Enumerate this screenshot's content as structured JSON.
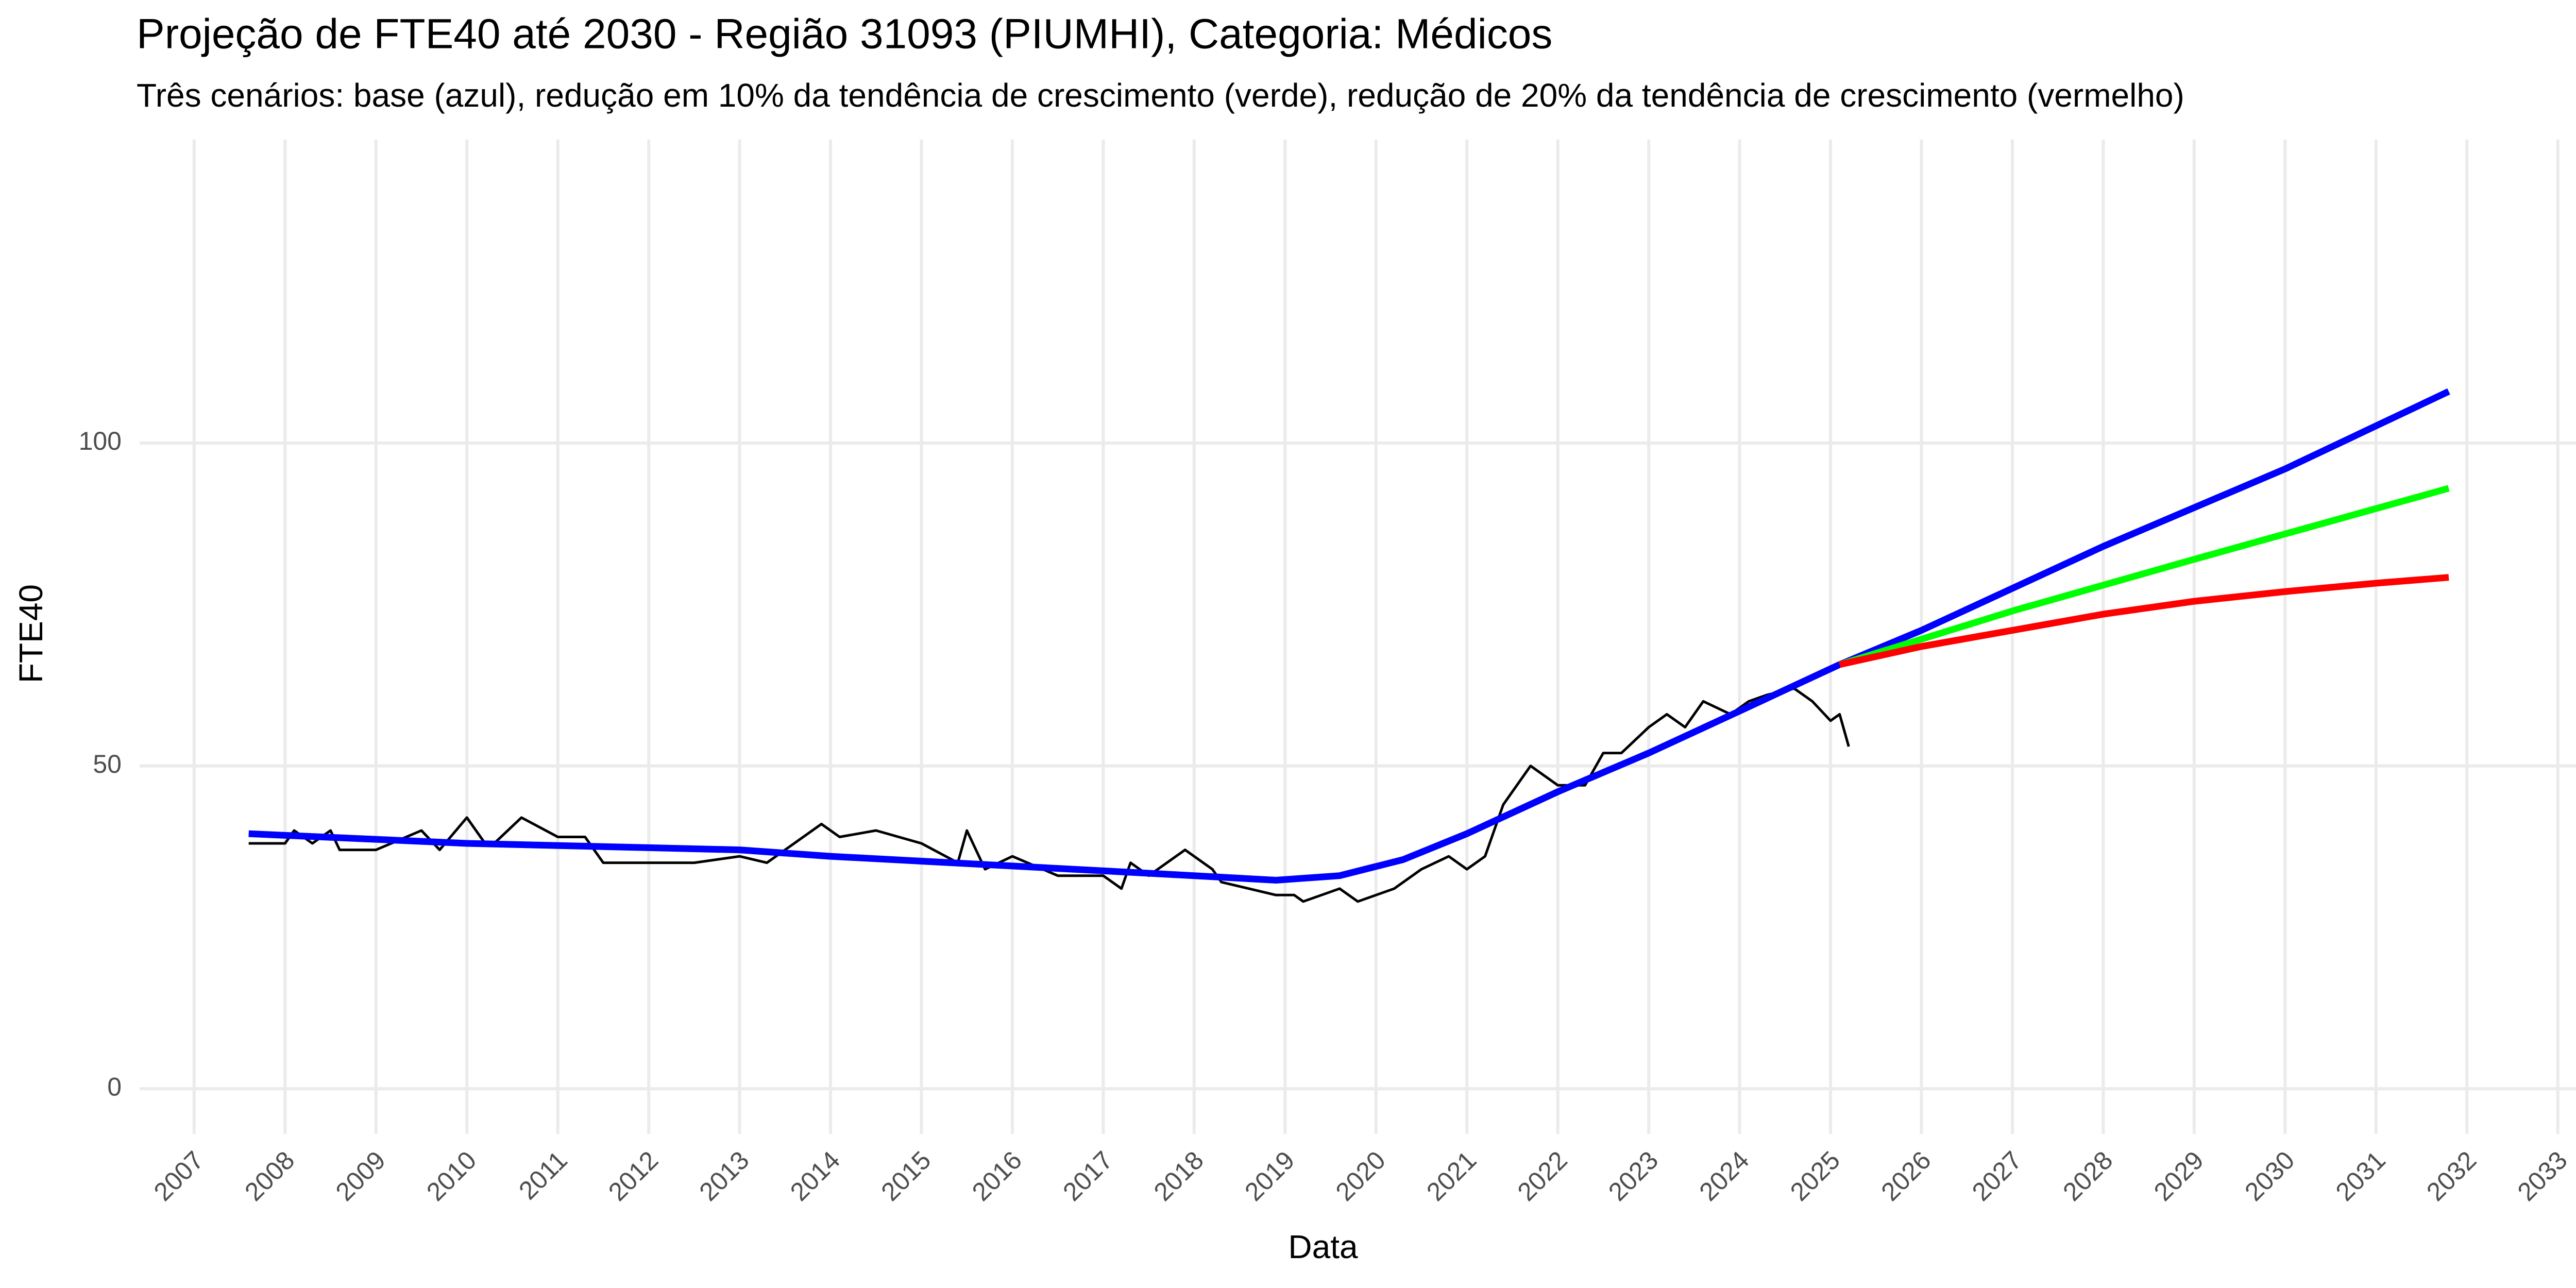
{
  "chart_data": {
    "type": "line",
    "title": "Projeção de FTE40 até 2030 - Região 31093 (PIUMHI), Categoria: Médicos",
    "subtitle": "Três cenários: base (azul), redução em 10% da tendência de crescimento (verde), redução de 20% da tendência de crescimento (vermelho)",
    "x_label": "Data",
    "y_label": "FTE40",
    "xlim": [
      2006.4,
      2033.2
    ],
    "ylim": [
      -7,
      147
    ],
    "xticks": [
      2007,
      2008,
      2009,
      2010,
      2011,
      2012,
      2013,
      2014,
      2015,
      2016,
      2017,
      2018,
      2019,
      2020,
      2021,
      2022,
      2023,
      2024,
      2025,
      2026,
      2027,
      2028,
      2029,
      2030,
      2031,
      2032,
      2033
    ],
    "yticks": [
      0,
      50,
      100
    ],
    "grid": true,
    "series": [
      {
        "color": "#000000",
        "x": [
          2007.6,
          2008.0,
          2008.1,
          2008.3,
          2008.5,
          2008.6,
          2009.0,
          2009.5,
          2009.7,
          2010.0,
          2010.2,
          2010.3,
          2010.6,
          2011.0,
          2011.3,
          2011.5,
          2012.0,
          2012.5,
          2013.0,
          2013.3,
          2013.5,
          2013.9,
          2014.1,
          2014.5,
          2015.0,
          2015.4,
          2015.5,
          2015.7,
          2016.0,
          2016.5,
          2017.0,
          2017.2,
          2017.3,
          2017.5,
          2017.9,
          2018.2,
          2018.3,
          2018.9,
          2019.1,
          2019.2,
          2019.6,
          2019.8,
          2020.2,
          2020.5,
          2020.8,
          2021.0,
          2021.2,
          2021.4,
          2021.7,
          2022.0,
          2022.3,
          2022.5,
          2022.7,
          2023.0,
          2023.2,
          2023.4,
          2023.6,
          2023.9,
          2024.1,
          2024.3,
          2024.6,
          2024.8,
          2025.0,
          2025.1,
          2025.2
        ],
        "values": [
          38,
          38,
          40,
          38,
          40,
          37,
          37,
          40,
          37,
          42,
          38,
          38,
          42,
          39,
          39,
          35,
          35,
          35,
          36,
          35,
          37,
          41,
          39,
          40,
          38,
          35,
          40,
          34,
          36,
          33,
          33,
          31,
          35,
          33,
          37,
          34,
          32,
          30,
          30,
          29,
          31,
          29,
          31,
          34,
          36,
          34,
          36,
          44,
          50,
          47,
          47,
          52,
          52,
          56,
          58,
          56,
          60,
          58,
          60,
          61,
          62,
          60,
          57,
          58,
          53
        ]
      },
      {
        "color": "#0000ff",
        "x": [
          2007.6,
          2010.0,
          2013.0,
          2014.0,
          2016.0,
          2018.0,
          2018.9,
          2019.6,
          2020.3,
          2021.0,
          2022.0,
          2023.0,
          2024.0,
          2025.1,
          2026.0,
          2028.0,
          2030.0,
          2031.8
        ],
        "values": [
          39.5,
          38,
          37,
          36,
          34.5,
          33,
          32.3,
          33,
          35.5,
          39.5,
          46,
          52,
          58.5,
          65.7,
          71,
          84,
          96,
          108
        ]
      },
      {
        "color": "#00ff00",
        "x": [
          2025.1,
          2027.0,
          2029.0,
          2031.8
        ],
        "values": [
          65.7,
          74,
          82,
          93
        ]
      },
      {
        "color": "#ff0000",
        "x": [
          2025.1,
          2026.0,
          2027.0,
          2028.0,
          2029.0,
          2030.0,
          2031.0,
          2031.8
        ],
        "values": [
          65.7,
          68.5,
          71,
          73.5,
          75.5,
          77,
          78.3,
          79.2
        ]
      }
    ]
  }
}
